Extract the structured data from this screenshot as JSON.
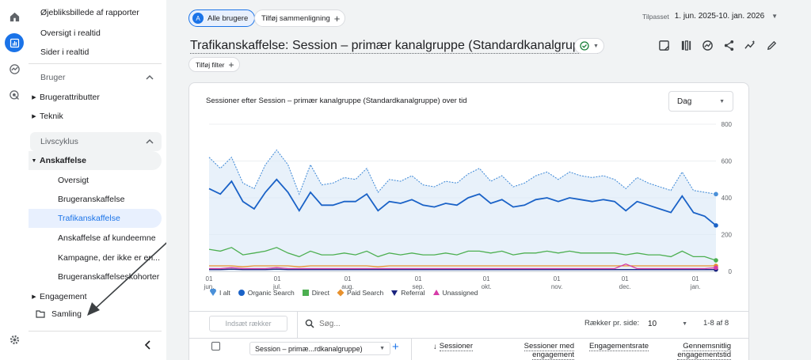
{
  "sidebar": {
    "items_top": [
      "Øjebliksbillede af rapporter",
      "Oversigt i realtid",
      "Sider i realtid"
    ],
    "sections": {
      "user": {
        "label": "Bruger",
        "items": [
          "Brugerattributter",
          "Teknik"
        ]
      },
      "lifecycle": {
        "label": "Livscyklus",
        "group": "Anskaffelse",
        "items": [
          "Oversigt",
          "Brugeranskaffelse",
          "Trafikanskaffelse",
          "Anskaffelse af kundeemne",
          "Kampagne, der ikke er en...",
          "Brugeranskaffelseskohorter"
        ]
      },
      "engagement": "Engagement",
      "collection": "Samling"
    }
  },
  "header": {
    "comparison_chip": "Alle brugere",
    "comparison_avatar": "A",
    "add_comparison": "Tilføj sammenligning",
    "date_prefix": "Tilpasset",
    "date_range": "1. jun. 2025-10. jan. 2026",
    "title": "Trafikanskaffelse: Session – primær kanalgruppe (Standardkanalgruppe)",
    "add_filter": "Tilføj filter"
  },
  "chart_card": {
    "title": "Sessioner efter Session – primær kanalgruppe (Standardkanalgruppe) over tid",
    "granularity": "Dag"
  },
  "chart_data": {
    "type": "line",
    "x_start": "2025-06-01",
    "x_end": "2026-01-10",
    "ylim": [
      0,
      800
    ],
    "yticks": [
      "800",
      "600",
      "400",
      "200",
      "0"
    ],
    "xticks": [
      {
        "day": "01",
        "month": "jun."
      },
      {
        "day": "01",
        "month": "jul."
      },
      {
        "day": "01",
        "month": "aug."
      },
      {
        "day": "01",
        "month": "sep."
      },
      {
        "day": "01",
        "month": "okt."
      },
      {
        "day": "01",
        "month": "nov."
      },
      {
        "day": "01",
        "month": "dec."
      },
      {
        "day": "01",
        "month": "jan."
      }
    ],
    "series": [
      {
        "name": "I alt",
        "color": "#4a90d9",
        "values": [
          620,
          560,
          620,
          480,
          450,
          580,
          660,
          580,
          420,
          580,
          470,
          480,
          510,
          500,
          560,
          430,
          500,
          490,
          520,
          470,
          460,
          490,
          480,
          530,
          560,
          490,
          520,
          460,
          480,
          520,
          540,
          500,
          540,
          520,
          510,
          520,
          500,
          450,
          510,
          480,
          460,
          440,
          540,
          440,
          430,
          420
        ]
      },
      {
        "name": "Organic Search",
        "color": "#1a62c7",
        "values": [
          450,
          420,
          490,
          380,
          340,
          430,
          500,
          430,
          330,
          430,
          360,
          360,
          380,
          380,
          420,
          330,
          380,
          370,
          390,
          360,
          350,
          370,
          360,
          400,
          420,
          370,
          390,
          350,
          360,
          390,
          400,
          380,
          400,
          390,
          380,
          390,
          380,
          330,
          380,
          360,
          340,
          320,
          410,
          320,
          300,
          250
        ]
      },
      {
        "name": "Direct",
        "color": "#4caf50",
        "values": [
          120,
          110,
          130,
          90,
          100,
          110,
          130,
          100,
          80,
          110,
          90,
          90,
          100,
          90,
          110,
          80,
          100,
          90,
          100,
          90,
          90,
          100,
          90,
          110,
          110,
          100,
          110,
          90,
          100,
          100,
          110,
          100,
          110,
          100,
          100,
          100,
          100,
          90,
          100,
          90,
          90,
          80,
          110,
          80,
          80,
          60
        ]
      },
      {
        "name": "Paid Search",
        "color": "#e8912d",
        "values": [
          30,
          30,
          30,
          25,
          30,
          30,
          30,
          30,
          25,
          30,
          30,
          30,
          30,
          30,
          30,
          25,
          30,
          30,
          30,
          30,
          30,
          30,
          30,
          30,
          30,
          30,
          30,
          30,
          30,
          30,
          30,
          30,
          30,
          30,
          30,
          30,
          30,
          30,
          30,
          30,
          30,
          30,
          30,
          30,
          30,
          30
        ]
      },
      {
        "name": "Referral",
        "color": "#1a237e",
        "values": [
          10,
          10,
          12,
          10,
          10,
          10,
          12,
          10,
          10,
          10,
          10,
          10,
          10,
          10,
          10,
          10,
          10,
          10,
          10,
          10,
          10,
          10,
          10,
          10,
          10,
          10,
          10,
          10,
          10,
          10,
          10,
          10,
          10,
          10,
          10,
          10,
          10,
          10,
          10,
          10,
          10,
          10,
          10,
          10,
          10,
          10
        ]
      },
      {
        "name": "Unassigned",
        "color": "#d63ca8",
        "values": [
          15,
          15,
          20,
          15,
          15,
          15,
          20,
          15,
          15,
          15,
          15,
          15,
          15,
          15,
          15,
          15,
          15,
          15,
          15,
          15,
          15,
          15,
          15,
          15,
          15,
          15,
          15,
          15,
          15,
          15,
          15,
          15,
          15,
          15,
          15,
          15,
          15,
          40,
          15,
          15,
          15,
          15,
          15,
          15,
          15,
          20
        ]
      }
    ]
  },
  "table": {
    "insert_rows": "Indsæt rækker",
    "search_placeholder": "Søg...",
    "rows_per_page_label": "Rækker pr. side:",
    "rows_per_page": "10",
    "pagination": "1-8 af 8",
    "dimension_select": "Session – primæ...rdkanalgruppe)",
    "columns": [
      "Sessioner",
      "Sessioner med engagement",
      "Engagementsrate",
      "Gennemsnitlig engagementstid"
    ]
  }
}
